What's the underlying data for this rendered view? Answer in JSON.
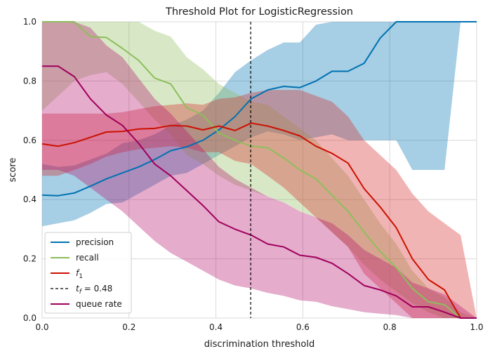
{
  "chart_data": {
    "type": "line",
    "title": "Threshold Plot for LogisticRegression",
    "xlabel": "discrimination threshold",
    "ylabel": "score",
    "xlim": [
      0,
      1
    ],
    "ylim": [
      0,
      1
    ],
    "xticks": [
      "0.0",
      "0.2",
      "0.4",
      "0.6",
      "0.8",
      "1.0"
    ],
    "yticks": [
      "0.0",
      "0.2",
      "0.4",
      "0.6",
      "0.8",
      "1.0"
    ],
    "grid": true,
    "legend_position": "bottom-left",
    "x": [
      0.0,
      0.037,
      0.074,
      0.111,
      0.148,
      0.185,
      0.222,
      0.259,
      0.296,
      0.333,
      0.37,
      0.407,
      0.444,
      0.481,
      0.519,
      0.556,
      0.593,
      0.63,
      0.667,
      0.704,
      0.741,
      0.778,
      0.815,
      0.852,
      0.889,
      0.926,
      0.963,
      1.0
    ],
    "series": [
      {
        "name": "precision",
        "color": "#0072B2",
        "band_color": "#0072B2",
        "values": [
          0.415,
          0.413,
          0.422,
          0.445,
          0.47,
          0.49,
          0.51,
          0.535,
          0.565,
          0.578,
          0.6,
          0.635,
          0.68,
          0.74,
          0.77,
          0.782,
          0.778,
          0.8,
          0.833,
          0.833,
          0.86,
          0.945,
          1.0,
          1.0,
          1.0,
          1.0,
          1.0,
          1.0
        ],
        "lower": [
          0.31,
          0.32,
          0.33,
          0.355,
          0.385,
          0.39,
          0.42,
          0.45,
          0.48,
          0.49,
          0.52,
          0.55,
          0.58,
          0.61,
          0.63,
          0.62,
          0.6,
          0.61,
          0.62,
          0.6,
          0.6,
          0.6,
          0.6,
          0.5,
          0.5,
          0.5,
          1.0,
          1.0
        ],
        "upper": [
          0.52,
          0.51,
          0.515,
          0.535,
          0.555,
          0.59,
          0.6,
          0.62,
          0.65,
          0.67,
          0.7,
          0.76,
          0.83,
          0.87,
          0.905,
          0.93,
          0.93,
          0.99,
          1.0,
          1.0,
          1.0,
          1.0,
          1.0,
          1.0,
          1.0,
          1.0,
          1.0,
          1.0
        ]
      },
      {
        "name": "recall",
        "color": "#8EBE5C",
        "band_color": "#8EBE5C",
        "values": [
          1.0,
          1.0,
          1.0,
          0.95,
          0.947,
          0.91,
          0.87,
          0.81,
          0.79,
          0.71,
          0.685,
          0.625,
          0.6,
          0.58,
          0.575,
          0.54,
          0.5,
          0.47,
          0.415,
          0.36,
          0.29,
          0.225,
          0.17,
          0.1,
          0.055,
          0.045,
          0.0,
          0.0
        ],
        "lower": [
          0.7,
          0.75,
          0.8,
          0.82,
          0.83,
          0.79,
          0.73,
          0.67,
          0.62,
          0.55,
          0.52,
          0.48,
          0.45,
          0.43,
          0.41,
          0.39,
          0.36,
          0.34,
          0.29,
          0.24,
          0.18,
          0.13,
          0.09,
          0.05,
          0.02,
          0.0,
          0.0,
          0.0
        ],
        "upper": [
          1.0,
          1.0,
          1.0,
          1.0,
          1.0,
          1.0,
          1.0,
          0.97,
          0.95,
          0.88,
          0.84,
          0.79,
          0.76,
          0.73,
          0.72,
          0.68,
          0.64,
          0.6,
          0.54,
          0.48,
          0.4,
          0.32,
          0.25,
          0.16,
          0.1,
          0.07,
          0.02,
          0.0
        ]
      },
      {
        "name": "f1",
        "legend_base": "f",
        "legend_sub": "1",
        "color": "#CC1100",
        "band_color": "#D62728",
        "values": [
          0.588,
          0.58,
          0.592,
          0.61,
          0.628,
          0.63,
          0.638,
          0.64,
          0.65,
          0.648,
          0.635,
          0.648,
          0.633,
          0.658,
          0.648,
          0.633,
          0.615,
          0.58,
          0.556,
          0.523,
          0.437,
          0.375,
          0.305,
          0.2,
          0.13,
          0.095,
          0.0,
          0.0
        ],
        "lower": [
          0.48,
          0.48,
          0.5,
          0.52,
          0.545,
          0.56,
          0.57,
          0.575,
          0.58,
          0.575,
          0.56,
          0.56,
          0.53,
          0.52,
          0.48,
          0.44,
          0.39,
          0.34,
          0.29,
          0.24,
          0.15,
          0.1,
          0.05,
          0.0,
          0.0,
          0.0,
          0.0,
          0.0
        ],
        "upper": [
          0.69,
          0.69,
          0.69,
          0.69,
          0.69,
          0.695,
          0.705,
          0.715,
          0.72,
          0.725,
          0.72,
          0.74,
          0.745,
          0.76,
          0.77,
          0.77,
          0.77,
          0.75,
          0.73,
          0.68,
          0.6,
          0.55,
          0.5,
          0.42,
          0.36,
          0.32,
          0.28,
          0.0
        ]
      },
      {
        "name": "queue rate",
        "color": "#A0005C",
        "band_color": "#B5126E",
        "values": [
          0.85,
          0.85,
          0.815,
          0.74,
          0.685,
          0.65,
          0.59,
          0.52,
          0.48,
          0.43,
          0.38,
          0.325,
          0.3,
          0.28,
          0.25,
          0.24,
          0.212,
          0.205,
          0.185,
          0.15,
          0.11,
          0.095,
          0.075,
          0.038,
          0.038,
          0.02,
          0.0,
          0.0
        ],
        "lower": [
          0.5,
          0.5,
          0.48,
          0.44,
          0.4,
          0.36,
          0.31,
          0.26,
          0.22,
          0.19,
          0.16,
          0.13,
          0.11,
          0.1,
          0.085,
          0.075,
          0.06,
          0.055,
          0.04,
          0.03,
          0.02,
          0.015,
          0.01,
          0.0,
          0.0,
          0.0,
          0.0,
          0.0
        ],
        "upper": [
          1.0,
          1.0,
          1.0,
          0.98,
          0.92,
          0.88,
          0.81,
          0.74,
          0.69,
          0.63,
          0.57,
          0.51,
          0.47,
          0.44,
          0.41,
          0.39,
          0.36,
          0.34,
          0.32,
          0.28,
          0.23,
          0.2,
          0.17,
          0.12,
          0.1,
          0.08,
          0.04,
          0.0
        ]
      }
    ],
    "threshold": {
      "label_prefix": "t",
      "label_sub": "f",
      "label_value": " = 0.48",
      "value": 0.48,
      "color": "#000000"
    }
  }
}
